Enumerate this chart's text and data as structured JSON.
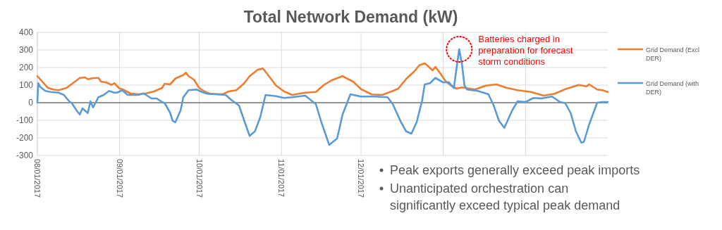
{
  "chart_data": {
    "type": "line",
    "title": "Total Network Demand (kW)",
    "xlim": [
      "2017-08-01",
      "2018-03-04"
    ],
    "xticks": [
      {
        "value": "2017-08-01",
        "label": "08/01/2017"
      },
      {
        "value": "2017-09-01",
        "label": "09/01/2017"
      },
      {
        "value": "2017-10-01",
        "label": "10/01/2017"
      },
      {
        "value": "2017-11-01",
        "label": "11/01/2017"
      },
      {
        "value": "2017-12-01",
        "label": "12/01/2017"
      },
      {
        "value": "2018-01-01",
        "label": null
      },
      {
        "value": "2018-02-01",
        "label": null
      }
    ],
    "ylim": [
      -300,
      400
    ],
    "yticks": [
      -300,
      -200,
      -100,
      0,
      100,
      200,
      300,
      400
    ],
    "grid": true,
    "legend": "right",
    "line_style": "solid",
    "marker": "none",
    "series": [
      {
        "name": "Grid Demand (Excl DER)",
        "color": "#ed7d31",
        "x": [
          "2017-08-01",
          "2017-08-03",
          "2017-08-05",
          "2017-08-07",
          "2017-08-09",
          "2017-08-12",
          "2017-08-14",
          "2017-08-17",
          "2017-08-19",
          "2017-08-20",
          "2017-08-22",
          "2017-08-24",
          "2017-08-25",
          "2017-08-27",
          "2017-08-29",
          "2017-08-30",
          "2017-09-01",
          "2017-09-02",
          "2017-09-05",
          "2017-09-08",
          "2017-09-11",
          "2017-09-14",
          "2017-09-17",
          "2017-09-18",
          "2017-09-20",
          "2017-09-22",
          "2017-09-24",
          "2017-09-25",
          "2017-09-26",
          "2017-09-27",
          "2017-09-29",
          "2017-10-01",
          "2017-10-03",
          "2017-10-05",
          "2017-10-10",
          "2017-10-12",
          "2017-10-15",
          "2017-10-18",
          "2017-10-20",
          "2017-10-23",
          "2017-10-25",
          "2017-10-28",
          "2017-10-30",
          "2017-11-02",
          "2017-11-05",
          "2017-11-10",
          "2017-11-14",
          "2017-11-17",
          "2017-11-20",
          "2017-11-24",
          "2017-11-28",
          "2017-12-01",
          "2017-12-05",
          "2017-12-09",
          "2017-12-13",
          "2017-12-15",
          "2017-12-18",
          "2017-12-21",
          "2017-12-23",
          "2017-12-25",
          "2017-12-28",
          "2017-12-29",
          "2017-12-31",
          "2018-01-02",
          "2018-01-04",
          "2018-01-06",
          "2018-01-08",
          "2018-01-13",
          "2018-01-17",
          "2018-01-21",
          "2018-01-25",
          "2018-01-29",
          "2018-02-03",
          "2018-02-08",
          "2018-02-12",
          "2018-02-16",
          "2018-02-21",
          "2018-02-24",
          "2018-02-25",
          "2018-02-28",
          "2018-03-02",
          "2018-03-04"
        ],
        "values": [
          151,
          117,
          84,
          75,
          71,
          84,
          107,
          141,
          144,
          133,
          140,
          141,
          120,
          115,
          101,
          111,
          80,
          77,
          53,
          48,
          53,
          64,
          84,
          108,
          104,
          137,
          151,
          157,
          171,
          151,
          131,
          84,
          64,
          51,
          48,
          64,
          71,
          111,
          151,
          187,
          195,
          137,
          97,
          64,
          44,
          57,
          61,
          101,
          128,
          151,
          120,
          77,
          47,
          44,
          67,
          80,
          135,
          177,
          213,
          224,
          184,
          204,
          164,
          120,
          97,
          80,
          87,
          75,
          97,
          104,
          84,
          71,
          61,
          40,
          51,
          77,
          101,
          93,
          104,
          75,
          71,
          61
        ]
      },
      {
        "name": "Grid Demand (with DER)",
        "color": "#5b9bd5",
        "x": [
          "2017-08-01T00:00",
          "2017-08-01T08:00",
          "2017-08-02",
          "2017-08-04",
          "2017-08-06",
          "2017-08-09",
          "2017-08-11",
          "2017-08-13",
          "2017-08-14",
          "2017-08-16",
          "2017-08-17",
          "2017-08-18",
          "2017-08-20",
          "2017-08-21",
          "2017-08-22",
          "2017-08-24",
          "2017-08-26",
          "2017-08-28",
          "2017-08-30",
          "2017-08-31",
          "2017-09-02",
          "2017-09-04",
          "2017-09-08",
          "2017-09-10",
          "2017-09-13",
          "2017-09-15",
          "2017-09-17",
          "2017-09-18",
          "2017-09-20",
          "2017-09-21",
          "2017-09-22",
          "2017-09-24",
          "2017-09-25",
          "2017-09-27",
          "2017-09-30",
          "2017-10-02",
          "2017-10-04",
          "2017-10-11",
          "2017-10-13",
          "2017-10-16",
          "2017-10-18",
          "2017-10-20",
          "2017-10-22",
          "2017-10-24",
          "2017-10-26",
          "2017-10-30",
          "2017-11-02",
          "2017-11-05",
          "2017-11-10",
          "2017-11-14",
          "2017-11-16",
          "2017-11-19",
          "2017-11-22",
          "2017-11-24",
          "2017-11-27",
          "2017-12-01",
          "2017-12-06",
          "2017-12-11",
          "2017-12-13",
          "2017-12-16",
          "2017-12-18",
          "2017-12-20",
          "2017-12-22",
          "2017-12-24",
          "2017-12-25",
          "2017-12-27",
          "2017-12-29",
          "2018-01-01",
          "2018-01-03",
          "2018-01-05",
          "2018-01-06",
          "2018-01-07",
          "2018-01-08",
          "2018-01-09",
          "2018-01-10",
          "2018-01-14",
          "2018-01-18",
          "2018-01-20",
          "2018-01-22",
          "2018-01-24",
          "2018-01-27",
          "2018-01-29",
          "2018-02-01",
          "2018-02-04",
          "2018-02-07",
          "2018-02-11",
          "2018-02-14",
          "2018-02-16",
          "2018-02-18",
          "2018-02-20",
          "2018-02-22",
          "2018-02-23",
          "2018-02-25",
          "2018-02-28",
          "2018-03-02",
          "2018-03-04"
        ],
        "values": [
          0,
          111,
          91,
          67,
          61,
          57,
          44,
          8,
          -3,
          -49,
          -67,
          -32,
          -59,
          8,
          -27,
          31,
          44,
          67,
          57,
          57,
          71,
          44,
          44,
          53,
          24,
          24,
          4,
          -3,
          -56,
          -103,
          -112,
          -43,
          31,
          71,
          75,
          61,
          51,
          44,
          17,
          -16,
          -103,
          -189,
          -163,
          -83,
          44,
          37,
          27,
          31,
          40,
          -9,
          -109,
          -240,
          -203,
          -69,
          48,
          35,
          35,
          31,
          -9,
          -109,
          -163,
          -176,
          -109,
          11,
          104,
          111,
          141,
          115,
          117,
          84,
          197,
          304,
          224,
          97,
          75,
          67,
          48,
          -16,
          -103,
          -143,
          -43,
          8,
          4,
          27,
          24,
          35,
          4,
          -3,
          -59,
          -163,
          -227,
          -223,
          -123,
          0,
          4,
          4
        ]
      }
    ],
    "annotations": [
      {
        "text": "Batteries charged in preparation for forecast storm conditions",
        "x": "2018-01-07",
        "y": 304
      },
      "Peak exports generally exceed peak imports",
      "Unanticipated orchestration can significantly exceed typical peak demand"
    ]
  }
}
